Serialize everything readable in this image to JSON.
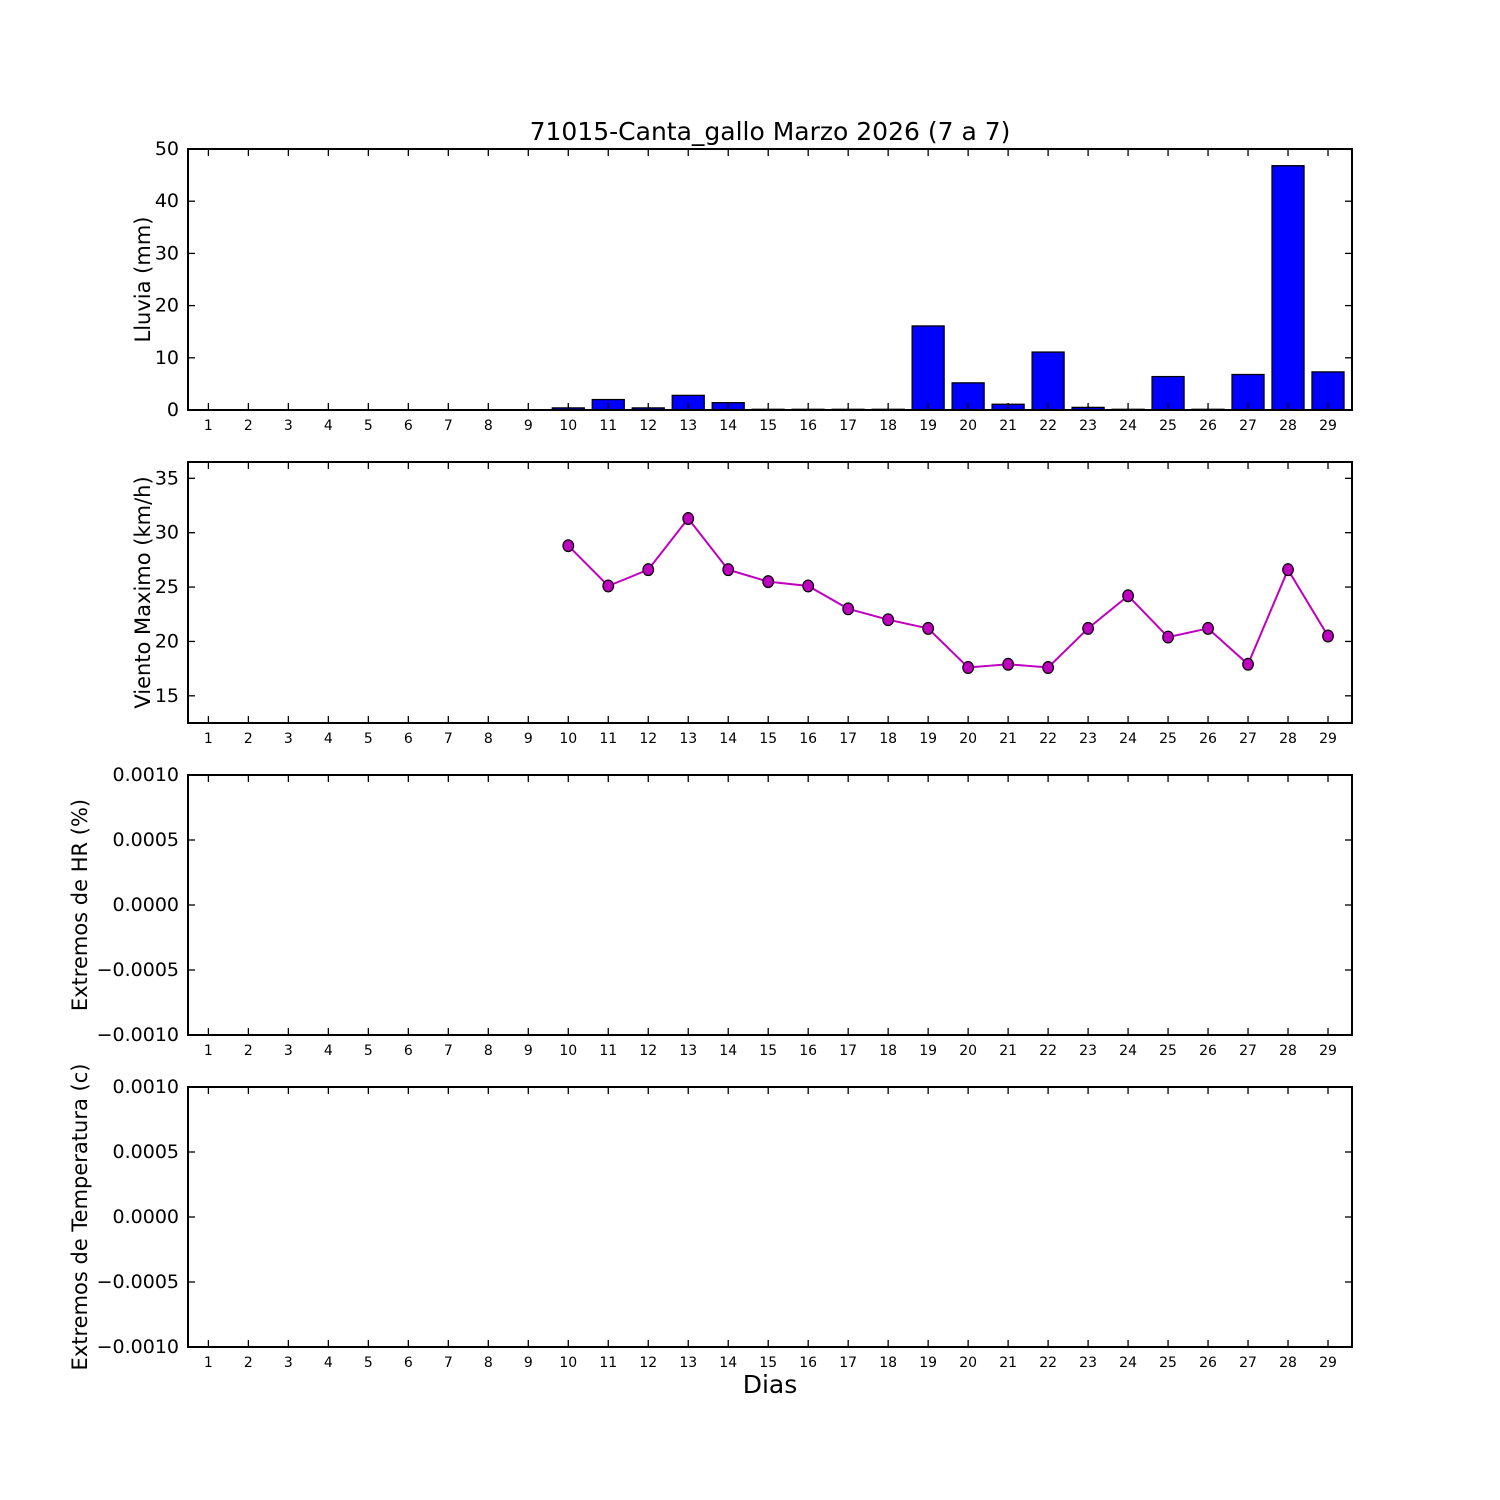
{
  "figure": {
    "title": "71015-Canta_gallo Marzo 2026  (7 a 7)",
    "xlabel": "Dias",
    "background": "#ffffff"
  },
  "colors": {
    "bar_fill": "#0000ff",
    "bar_edge": "#000000",
    "line": "#bf00bf",
    "marker_fill": "#bf00bf",
    "marker_edge": "#000000",
    "axis": "#000000",
    "text": "#000000"
  },
  "chart_data": [
    {
      "type": "bar",
      "title": "71015-Canta_gallo Marzo 2026  (7 a 7)",
      "ylabel": "Lluvia (mm)",
      "categories": [
        "1",
        "2",
        "3",
        "4",
        "5",
        "6",
        "7",
        "8",
        "9",
        "10",
        "11",
        "12",
        "13",
        "14",
        "15",
        "16",
        "17",
        "18",
        "19",
        "20",
        "21",
        "22",
        "23",
        "24",
        "25",
        "26",
        "27",
        "28",
        "29"
      ],
      "values": [
        0,
        0,
        0,
        0,
        0,
        0,
        0,
        0,
        0,
        0.4,
        2.0,
        0.4,
        2.8,
        1.4,
        0.1,
        0.1,
        0.1,
        0.1,
        16.1,
        5.2,
        1.1,
        11.1,
        0.5,
        0.1,
        6.4,
        0.1,
        6.8,
        46.8,
        7.3
      ],
      "ylim": [
        0,
        50
      ],
      "yticks": [
        0,
        10,
        20,
        30,
        40,
        50
      ],
      "ytick_labels": [
        "0",
        "10",
        "20",
        "30",
        "40",
        "50"
      ],
      "grid": false,
      "legend": "none"
    },
    {
      "type": "line",
      "ylabel": "Viento Maximo (km/h)",
      "categories": [
        "1",
        "2",
        "3",
        "4",
        "5",
        "6",
        "7",
        "8",
        "9",
        "10",
        "11",
        "12",
        "13",
        "14",
        "15",
        "16",
        "17",
        "18",
        "19",
        "20",
        "21",
        "22",
        "23",
        "24",
        "25",
        "26",
        "27",
        "28",
        "29"
      ],
      "values": [
        null,
        null,
        null,
        null,
        null,
        null,
        null,
        null,
        null,
        28.8,
        25.1,
        26.6,
        31.3,
        26.6,
        25.5,
        25.1,
        23.0,
        22.0,
        21.2,
        17.6,
        17.9,
        17.6,
        21.2,
        24.2,
        20.4,
        21.2,
        17.9,
        26.6,
        20.5
      ],
      "ylim": [
        12.5,
        36.5
      ],
      "yticks": [
        15,
        20,
        25,
        30,
        35
      ],
      "ytick_labels": [
        "15",
        "20",
        "25",
        "30",
        "35"
      ],
      "marker": "circle",
      "grid": false,
      "legend": "none"
    },
    {
      "type": "line",
      "ylabel": "Extremos de HR (%)",
      "categories": [
        "1",
        "2",
        "3",
        "4",
        "5",
        "6",
        "7",
        "8",
        "9",
        "10",
        "11",
        "12",
        "13",
        "14",
        "15",
        "16",
        "17",
        "18",
        "19",
        "20",
        "21",
        "22",
        "23",
        "24",
        "25",
        "26",
        "27",
        "28",
        "29"
      ],
      "values": [],
      "ylim": [
        -0.001,
        0.001
      ],
      "yticks": [
        0.001,
        0.0005,
        0,
        -0.0005,
        -0.001
      ],
      "ytick_labels": [
        "0.0010",
        "0.0005",
        "0.0000",
        "−0.0005",
        "−0.0010"
      ],
      "grid": false,
      "legend": "none"
    },
    {
      "type": "line",
      "ylabel": "Extremos de Temperatura (c)",
      "xlabel": "Dias",
      "categories": [
        "1",
        "2",
        "3",
        "4",
        "5",
        "6",
        "7",
        "8",
        "9",
        "10",
        "11",
        "12",
        "13",
        "14",
        "15",
        "16",
        "17",
        "18",
        "19",
        "20",
        "21",
        "22",
        "23",
        "24",
        "25",
        "26",
        "27",
        "28",
        "29"
      ],
      "values": [],
      "ylim": [
        -0.001,
        0.001
      ],
      "yticks": [
        0.001,
        0.0005,
        0,
        -0.0005,
        -0.001
      ],
      "ytick_labels": [
        "0.0010",
        "0.0005",
        "0.0000",
        "−0.0005",
        "−0.0010"
      ],
      "grid": false,
      "legend": "none"
    }
  ]
}
